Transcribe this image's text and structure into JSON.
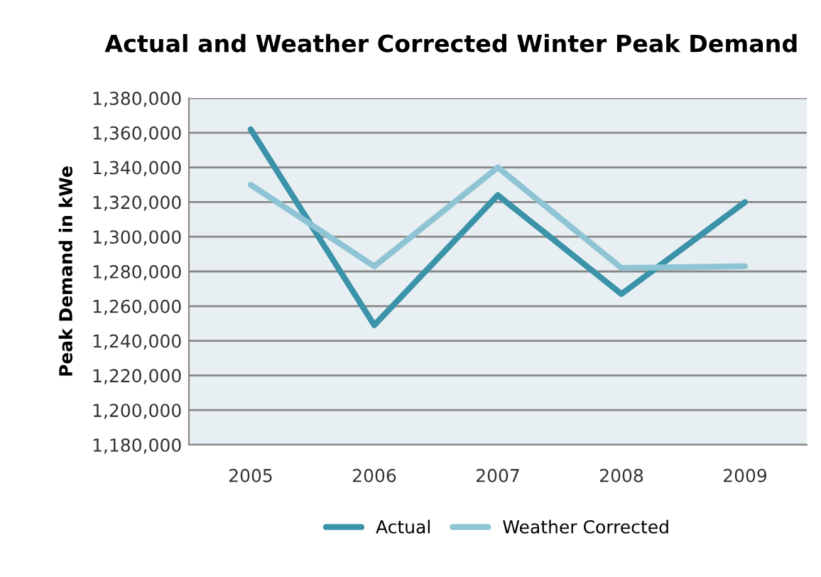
{
  "chart_data": {
    "type": "line",
    "title": "Actual and Weather Corrected Winter Peak Demand",
    "ylabel": "Peak Demand in kWe",
    "categories": [
      "2005",
      "2006",
      "2007",
      "2008",
      "2009"
    ],
    "series": [
      {
        "name": "Actual",
        "color": "#3a93a8",
        "values": [
          1362000,
          1249000,
          1324000,
          1267000,
          1320000
        ]
      },
      {
        "name": "Weather Corrected",
        "color": "#8ec4d4",
        "values": [
          1330000,
          1283000,
          1340000,
          1282000,
          1283000
        ]
      }
    ],
    "ylim": [
      1180000,
      1380000
    ],
    "yticks": [
      {
        "value": 1180000,
        "label": "1,180,000"
      },
      {
        "value": 1200000,
        "label": "1,200,000"
      },
      {
        "value": 1220000,
        "label": "1,220,000"
      },
      {
        "value": 1240000,
        "label": "1,240,000"
      },
      {
        "value": 1260000,
        "label": "1,260,000"
      },
      {
        "value": 1280000,
        "label": "1,280,000"
      },
      {
        "value": 1300000,
        "label": "1,300,000"
      },
      {
        "value": 1320000,
        "label": "1,320,000"
      },
      {
        "value": 1340000,
        "label": "1,340,000"
      },
      {
        "value": 1360000,
        "label": "1,360,000"
      },
      {
        "value": 1380000,
        "label": "1,380,000"
      }
    ],
    "grid": "y",
    "legend": "bottom",
    "marker": "none",
    "line_style": "solid"
  }
}
